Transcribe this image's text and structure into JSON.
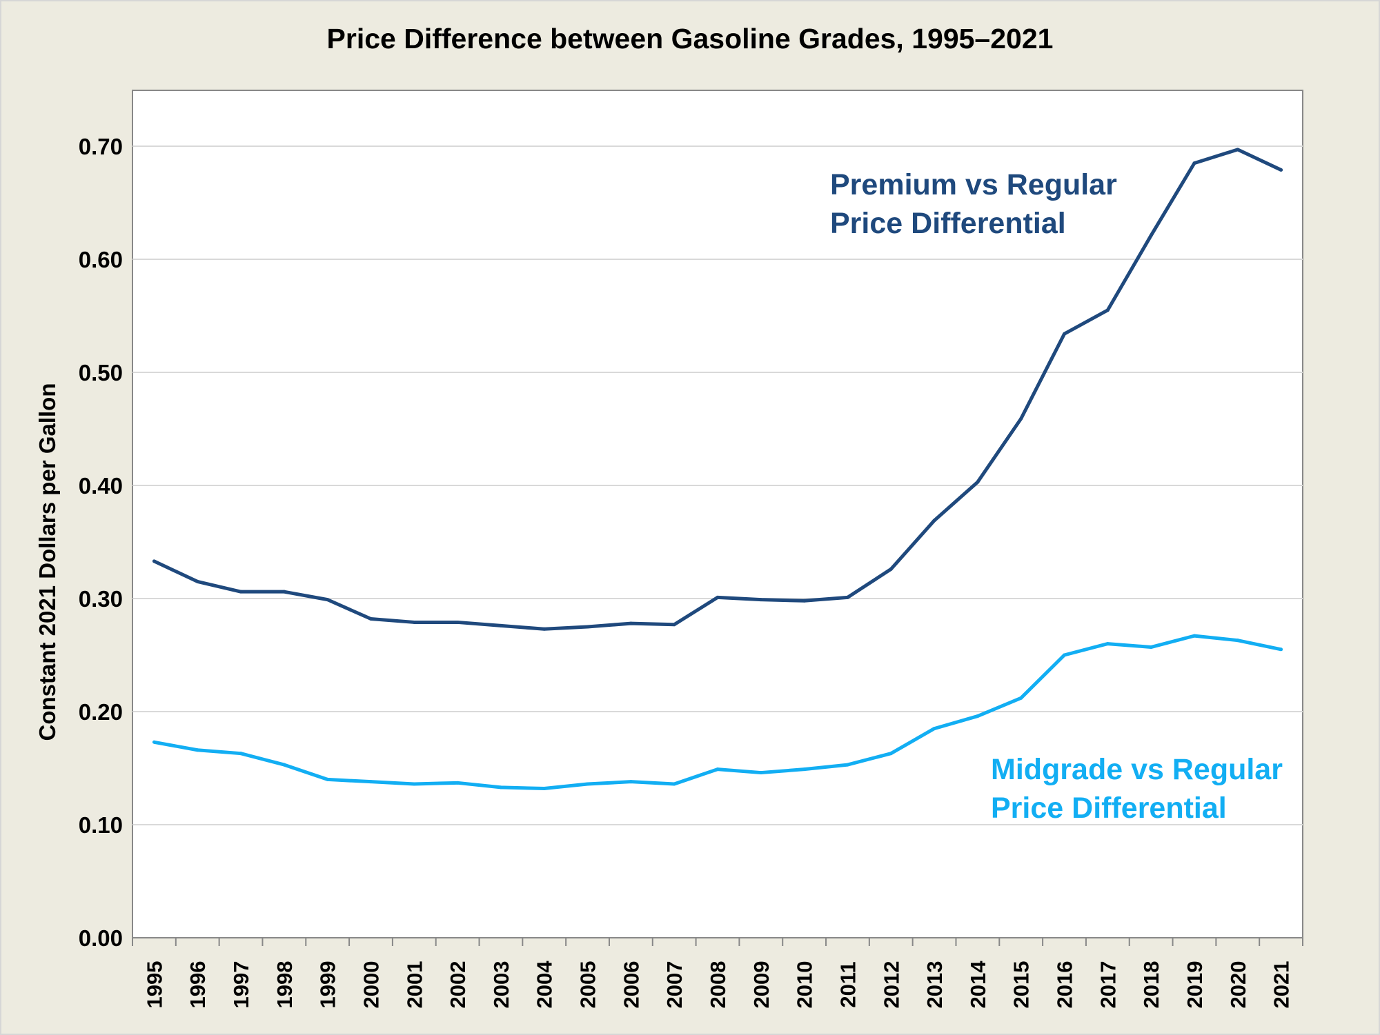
{
  "chart_data": {
    "type": "line",
    "title": "Price Difference between Gasoline Grades, 1995–2021",
    "xlabel": "",
    "ylabel": "Constant 2021 Dollars per Gallon",
    "ylim": [
      0,
      0.75
    ],
    "yticks": [
      "0.00",
      "0.10",
      "0.20",
      "0.30",
      "0.40",
      "0.50",
      "0.60",
      "0.70"
    ],
    "grid": true,
    "categories": [
      "1995",
      "1996",
      "1997",
      "1998",
      "1999",
      "2000",
      "2001",
      "2002",
      "2003",
      "2004",
      "2005",
      "2006",
      "2007",
      "2008",
      "2009",
      "2010",
      "2011",
      "2012",
      "2013",
      "2014",
      "2015",
      "2016",
      "2017",
      "2018",
      "2019",
      "2020",
      "2021"
    ],
    "series": [
      {
        "name": "Premium vs Regular Price Differential",
        "label_lines": [
          "Premium vs Regular",
          "Price Differential"
        ],
        "color": "#1F497D",
        "values": [
          0.333,
          0.315,
          0.306,
          0.306,
          0.299,
          0.282,
          0.279,
          0.279,
          0.276,
          0.273,
          0.275,
          0.278,
          0.277,
          0.301,
          0.299,
          0.298,
          0.301,
          0.326,
          0.369,
          0.403,
          0.459,
          0.534,
          0.555,
          0.621,
          0.685,
          0.697,
          0.679
        ]
      },
      {
        "name": "Midgrade vs Regular Price Differential",
        "label_lines": [
          "Midgrade vs Regular",
          "Price Differential"
        ],
        "color": "#12AEF3",
        "values": [
          0.173,
          0.166,
          0.163,
          0.153,
          0.14,
          0.138,
          0.136,
          0.137,
          0.133,
          0.132,
          0.136,
          0.138,
          0.136,
          0.149,
          0.146,
          0.149,
          0.153,
          0.163,
          0.185,
          0.196,
          0.212,
          0.25,
          0.26,
          0.257,
          0.267,
          0.263,
          0.255
        ]
      }
    ]
  }
}
